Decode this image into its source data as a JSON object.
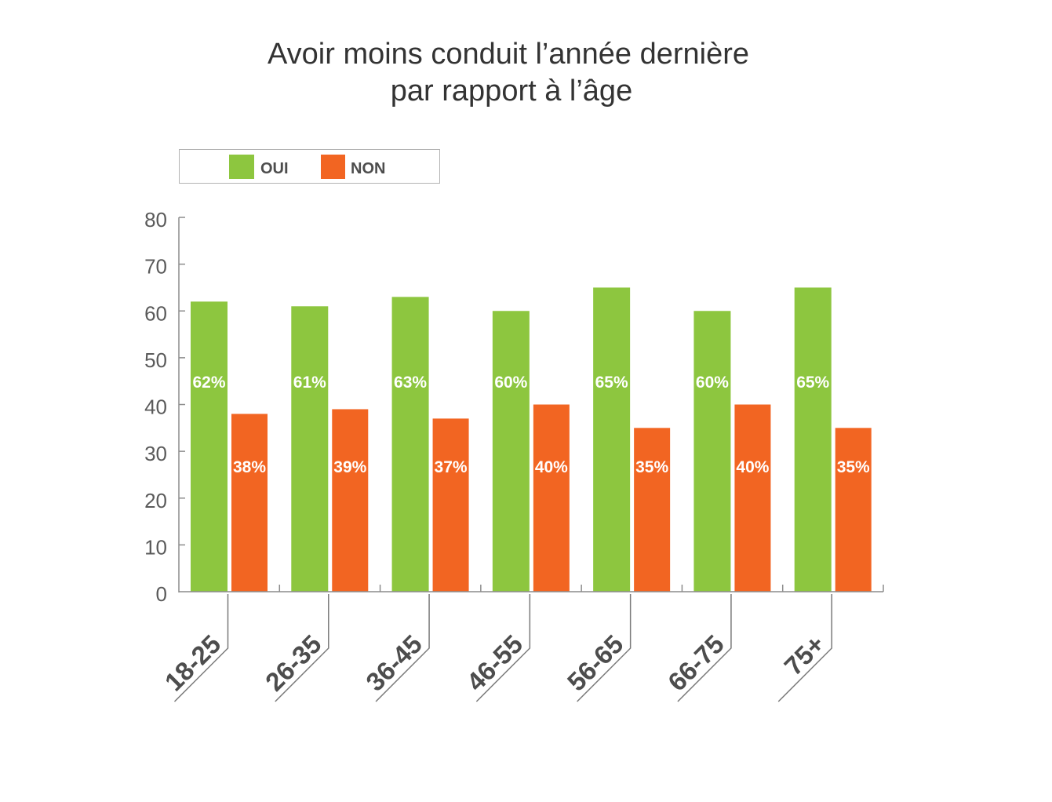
{
  "chart_data": {
    "type": "bar",
    "title": [
      "Avoir moins conduit l’année dernière",
      "par rapport à l’âge"
    ],
    "categories": [
      "18-25",
      "26-35",
      "36-45",
      "46-55",
      "56-65",
      "66-75",
      "75+"
    ],
    "series": [
      {
        "name": "OUI",
        "color": "#8dc63f",
        "values": [
          62,
          61,
          63,
          60,
          65,
          60,
          65
        ],
        "labels": [
          "62%",
          "61%",
          "63%",
          "60%",
          "65%",
          "60%",
          "65%"
        ]
      },
      {
        "name": "NON",
        "color": "#f26522",
        "values": [
          38,
          39,
          37,
          40,
          35,
          40,
          35
        ],
        "labels": [
          "38%",
          "39%",
          "37%",
          "40%",
          "35%",
          "40%",
          "35%"
        ]
      }
    ],
    "ylim": [
      0,
      80
    ],
    "yticks": [
      0,
      10,
      20,
      30,
      40,
      50,
      60,
      70,
      80
    ],
    "grid": false,
    "legend": "top-left"
  }
}
